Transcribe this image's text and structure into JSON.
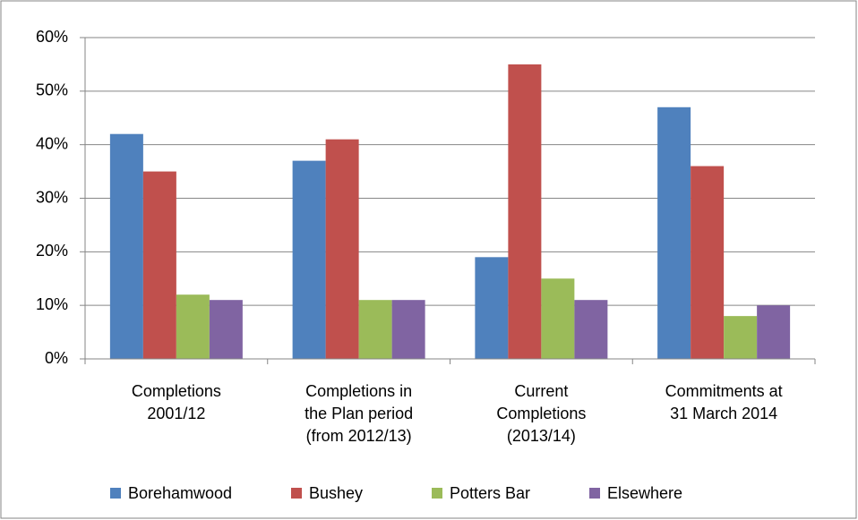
{
  "chart_data": {
    "type": "bar",
    "categories": [
      "Completions\n2001/12",
      "Completions in\nthe Plan period\n(from 2012/13)",
      "Current\nCompletions\n(2013/14)",
      "Commitments at\n31 March 2014"
    ],
    "series": [
      {
        "name": "Borehamwood",
        "color": "#4f81bd",
        "values": [
          42,
          37,
          19,
          47
        ]
      },
      {
        "name": "Bushey",
        "color": "#c0504d",
        "values": [
          35,
          41,
          55,
          36
        ]
      },
      {
        "name": "Potters Bar",
        "color": "#9bbb59",
        "values": [
          12,
          11,
          15,
          8
        ]
      },
      {
        "name": "Elsewhere",
        "color": "#8064a2",
        "values": [
          11,
          11,
          11,
          10
        ]
      }
    ],
    "ylim": [
      0,
      60
    ],
    "yticks": [
      {
        "value": 0,
        "label": "0%"
      },
      {
        "value": 10,
        "label": "10%"
      },
      {
        "value": 20,
        "label": "20%"
      },
      {
        "value": 30,
        "label": "30%"
      },
      {
        "value": 40,
        "label": "40%"
      },
      {
        "value": 50,
        "label": "50%"
      },
      {
        "value": 60,
        "label": "60%"
      }
    ],
    "grid": true,
    "legend": "bottom"
  }
}
